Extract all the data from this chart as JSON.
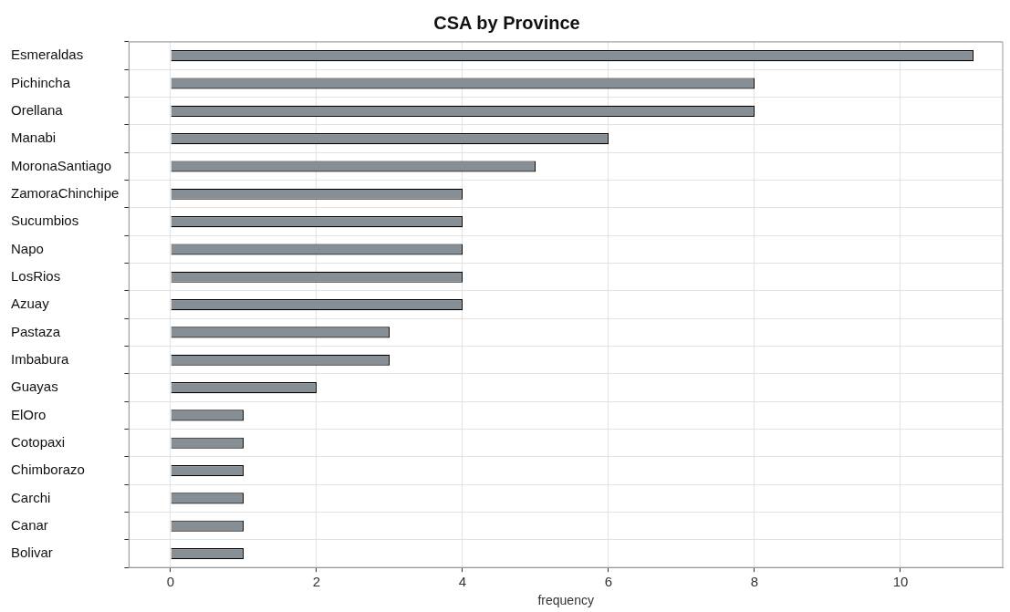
{
  "chart_data": {
    "type": "bar",
    "orientation": "horizontal",
    "title": "CSA by Province",
    "xlabel": "frequency",
    "categories": [
      "Esmeraldas",
      "Pichincha",
      "Orellana",
      "Manabi",
      "MoronaSantiago",
      "ZamoraChinchipe",
      "Sucumbios",
      "Napo",
      "LosRios",
      "Azuay",
      "Pastaza",
      "Imbabura",
      "Guayas",
      "ElOro",
      "Cotopaxi",
      "Chimborazo",
      "Carchi",
      "Canar",
      "Bolivar"
    ],
    "values": [
      11,
      8,
      8,
      6,
      5,
      4,
      4,
      4,
      4,
      4,
      3,
      3,
      2,
      1,
      1,
      1,
      1,
      1,
      1
    ],
    "color": "#868e96",
    "xlim": [
      -0.57,
      11.4
    ],
    "xticks": [
      0,
      2,
      4,
      6,
      8,
      10
    ],
    "grid": true,
    "legend": false
  }
}
